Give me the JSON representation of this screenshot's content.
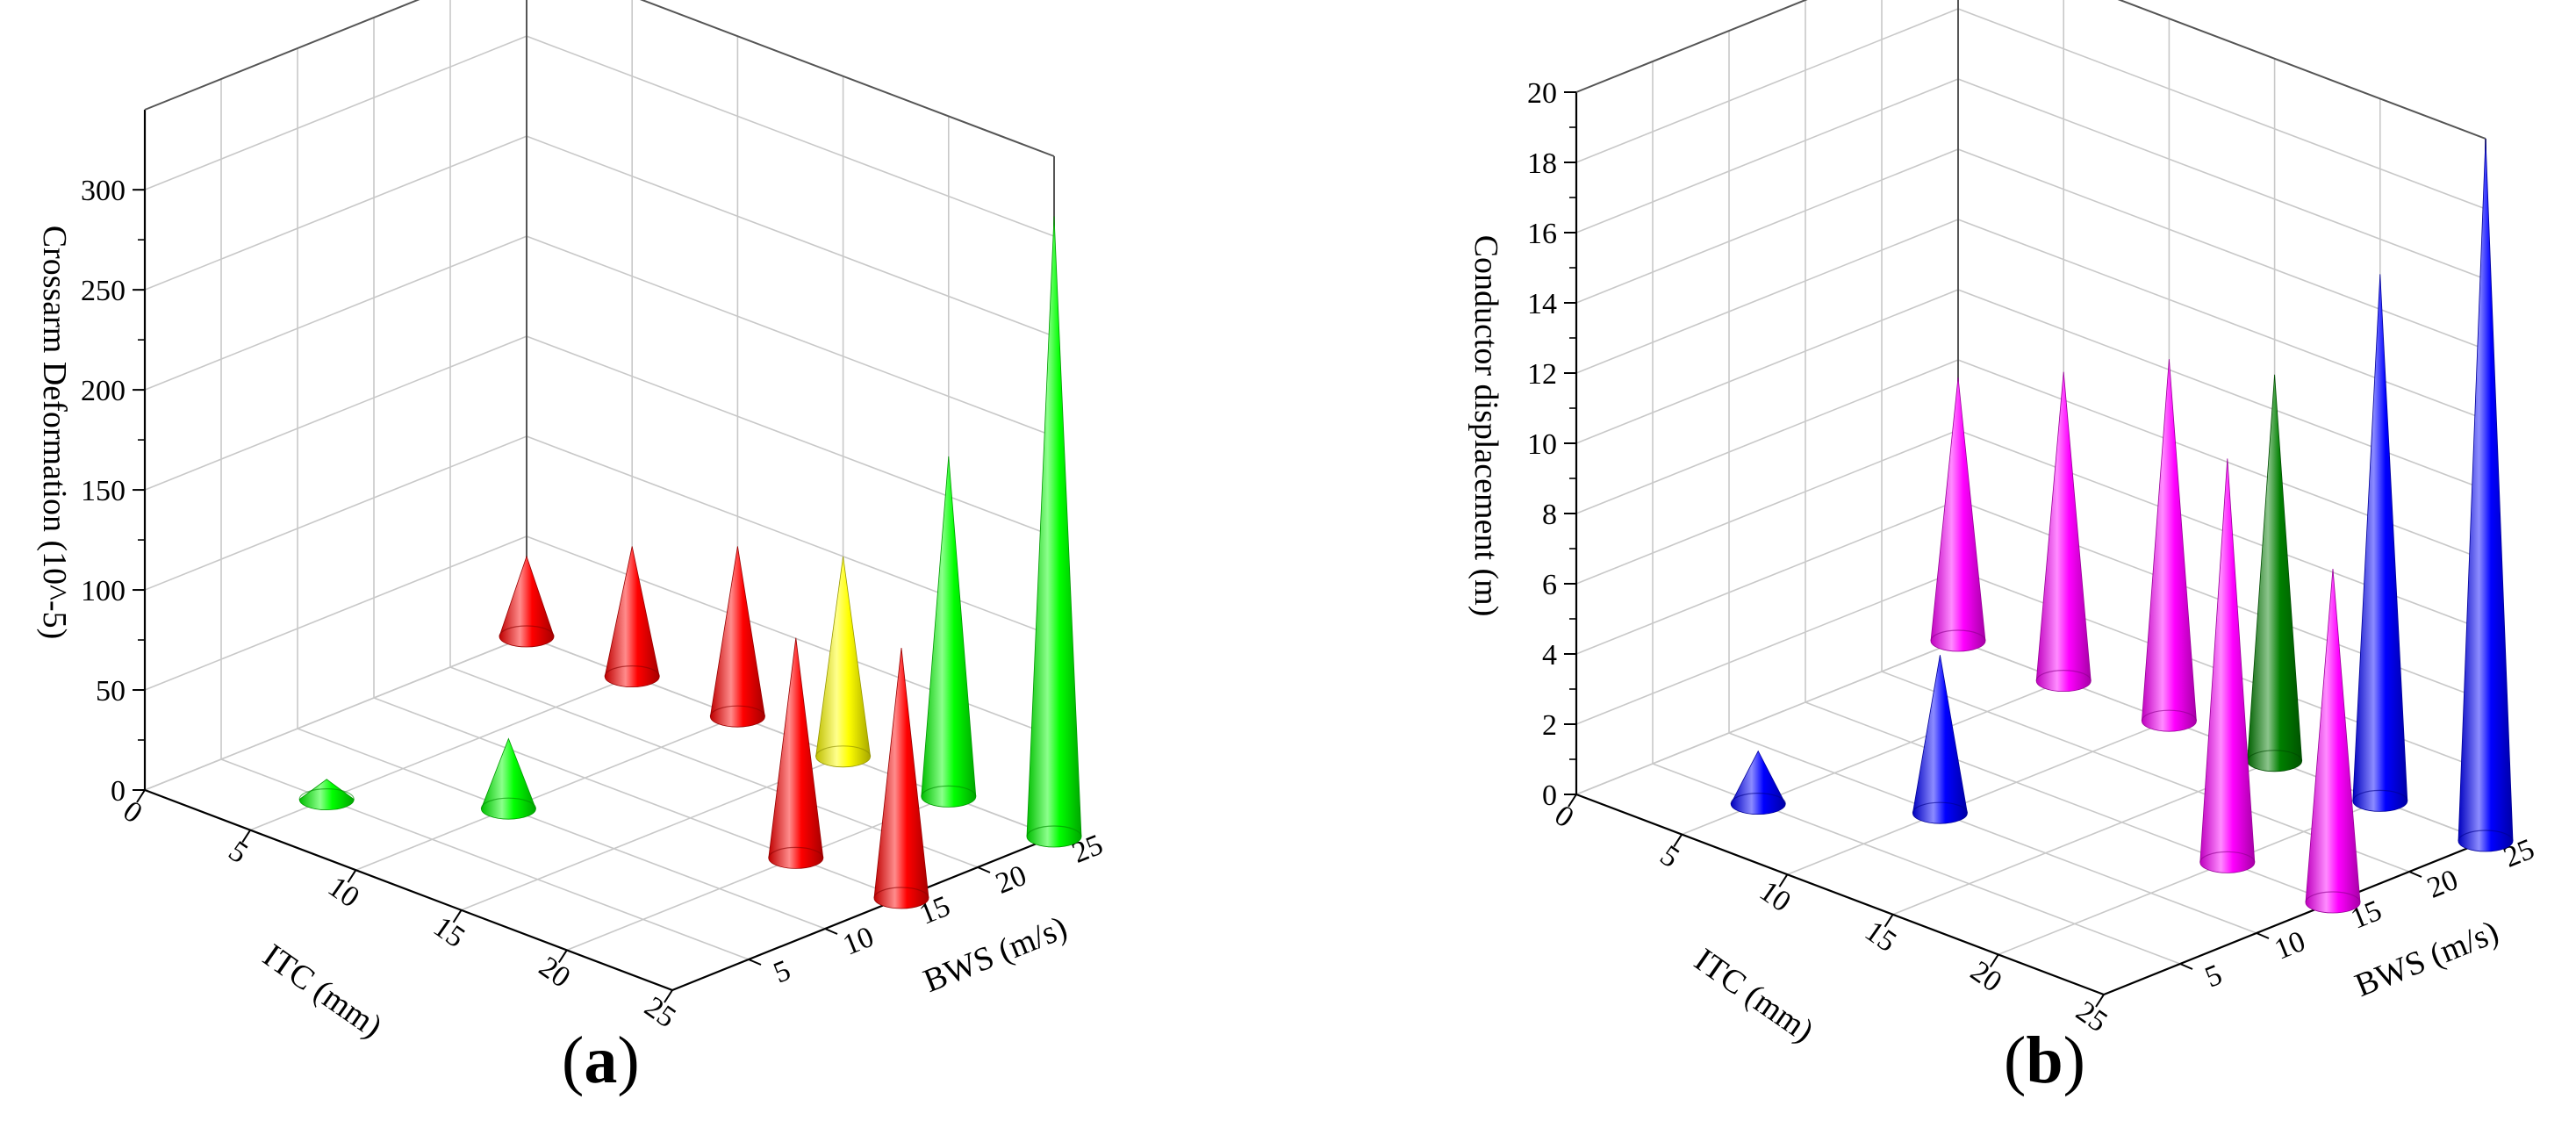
{
  "panels": {
    "a": {
      "label": "a"
    },
    "b": {
      "label": "b"
    }
  },
  "chart_data": [
    {
      "type": "3d-cone",
      "panel": "a",
      "zlabel": "Crossarm Deformation (10^-5)",
      "xlabel": "ITC (mm)",
      "ylabel": "BWS (m/s)",
      "x_ticks": [
        "0",
        "5",
        "10",
        "15",
        "20",
        "25"
      ],
      "y_ticks": [
        "5",
        "10",
        "15",
        "20",
        "25"
      ],
      "z_ticks": [
        "0",
        "50",
        "100",
        "150",
        "200",
        "250",
        "300"
      ],
      "xlim": [
        0,
        25
      ],
      "ylim": [
        0,
        25
      ],
      "zlim": [
        0,
        340
      ],
      "points": [
        {
          "itc": 0,
          "bws": 25,
          "value": 40,
          "color": "#ff0000"
        },
        {
          "itc": 5,
          "bws": 25,
          "value": 65,
          "color": "#ff0000"
        },
        {
          "itc": 10,
          "bws": 25,
          "value": 85,
          "color": "#ff0000"
        },
        {
          "itc": 15,
          "bws": 25,
          "value": 100,
          "color": "#ffff00"
        },
        {
          "itc": 20,
          "bws": 25,
          "value": 170,
          "color": "#00ff00"
        },
        {
          "itc": 25,
          "bws": 25,
          "value": 310,
          "color": "#00ff00"
        },
        {
          "itc": 5,
          "bws": 5,
          "value": 10,
          "color": "#00ff00"
        },
        {
          "itc": 10,
          "bws": 10,
          "value": 35,
          "color": "#00ff00"
        },
        {
          "itc": 20,
          "bws": 15,
          "value": 110,
          "color": "#ff0000"
        },
        {
          "itc": 25,
          "bws": 15,
          "value": 125,
          "color": "#ff0000"
        }
      ]
    },
    {
      "type": "3d-cone",
      "panel": "b",
      "zlabel": "Conductor displacement (m)",
      "xlabel": "ITC (mm)",
      "ylabel": "BWS (m/s)",
      "x_ticks": [
        "0",
        "5",
        "10",
        "15",
        "20",
        "25"
      ],
      "y_ticks": [
        "5",
        "10",
        "15",
        "20",
        "25"
      ],
      "z_ticks": [
        "0",
        "2",
        "4",
        "6",
        "8",
        "10",
        "12",
        "14",
        "16",
        "18",
        "20"
      ],
      "xlim": [
        0,
        25
      ],
      "ylim": [
        0,
        25
      ],
      "zlim": [
        0,
        20
      ],
      "points": [
        {
          "itc": 0,
          "bws": 25,
          "value": 7.5,
          "color": "#ff00ff"
        },
        {
          "itc": 5,
          "bws": 25,
          "value": 8.8,
          "color": "#ff00ff"
        },
        {
          "itc": 10,
          "bws": 25,
          "value": 10.3,
          "color": "#ff00ff"
        },
        {
          "itc": 15,
          "bws": 25,
          "value": 11.0,
          "color": "#007f00"
        },
        {
          "itc": 20,
          "bws": 25,
          "value": 15.0,
          "color": "#0000ff"
        },
        {
          "itc": 25,
          "bws": 25,
          "value": 20.0,
          "color": "#0000ff"
        },
        {
          "itc": 5,
          "bws": 5,
          "value": 1.5,
          "color": "#0000ff"
        },
        {
          "itc": 10,
          "bws": 10,
          "value": 4.5,
          "color": "#0000ff"
        },
        {
          "itc": 20,
          "bws": 15,
          "value": 11.5,
          "color": "#ff00ff"
        },
        {
          "itc": 25,
          "bws": 15,
          "value": 9.5,
          "color": "#ff00ff"
        }
      ]
    }
  ]
}
